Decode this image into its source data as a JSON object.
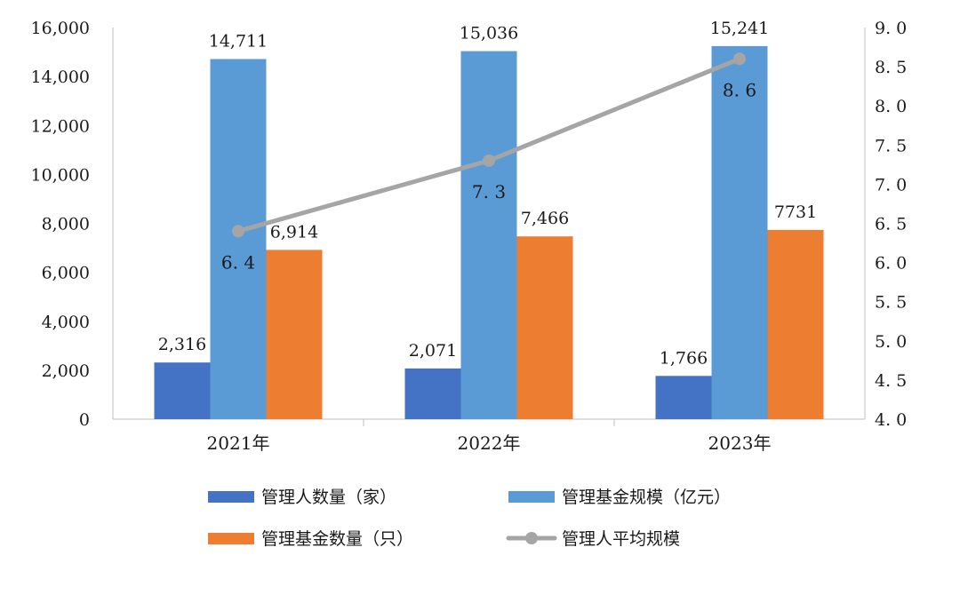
{
  "chart_data": {
    "type": "bar+line",
    "categories": [
      "2021年",
      "2022年",
      "2023年"
    ],
    "series": [
      {
        "name": "管理人数量（家）",
        "kind": "bar",
        "axis": "left",
        "color": "#4472C4",
        "values": [
          2316,
          2071,
          1766
        ],
        "labels": [
          "2,316",
          "2,071",
          "1,766"
        ]
      },
      {
        "name": "管理基金规模（亿元）",
        "kind": "bar",
        "axis": "left",
        "color": "#5B9BD5",
        "values": [
          14711,
          15036,
          15241
        ],
        "labels": [
          "14,711",
          "15,036",
          "15,241"
        ]
      },
      {
        "name": "管理基金数量（只）",
        "kind": "bar",
        "axis": "left",
        "color": "#ED7D31",
        "values": [
          6914,
          7466,
          7731
        ],
        "labels": [
          "6,914",
          "7,466",
          "7731"
        ]
      },
      {
        "name": "管理人平均规模",
        "kind": "line",
        "axis": "right",
        "color": "#A5A5A5",
        "values": [
          6.4,
          7.3,
          8.6
        ],
        "labels": [
          "6. 4",
          "7. 3",
          "8. 6"
        ]
      }
    ],
    "left_axis": {
      "min": 0,
      "max": 16000,
      "ticks": [
        0,
        2000,
        4000,
        6000,
        8000,
        10000,
        12000,
        14000,
        16000
      ],
      "tick_labels": [
        "0",
        "2,000",
        "4,000",
        "6,000",
        "8,000",
        "10,000",
        "12,000",
        "14,000",
        "16,000"
      ]
    },
    "right_axis": {
      "min": 4.0,
      "max": 9.0,
      "ticks": [
        4.0,
        4.5,
        5.0,
        5.5,
        6.0,
        6.5,
        7.0,
        7.5,
        8.0,
        8.5,
        9.0
      ],
      "tick_labels": [
        "4. 0",
        "4. 5",
        "5. 0",
        "5. 5",
        "6. 0",
        "6. 5",
        "7. 0",
        "7. 5",
        "8. 0",
        "8. 5",
        "9. 0"
      ]
    },
    "legend": {
      "placement": "bottom",
      "columns": 2
    },
    "grid": false
  }
}
